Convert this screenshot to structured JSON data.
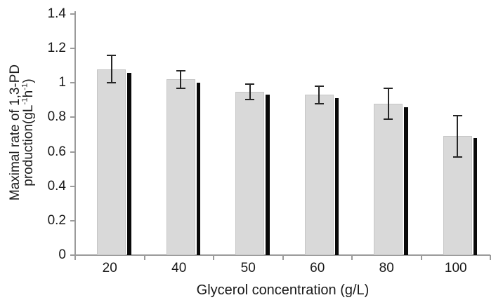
{
  "chart_data": {
    "type": "bar",
    "title": "",
    "xlabel": "Glycerol concentration (g/L)",
    "ylabel_line1": "Maximal rate of 1,3-PD",
    "ylabel_line2_parts": [
      {
        "t": "production(gL"
      },
      {
        "t": "-1",
        "sup": true
      },
      {
        "t": "h"
      },
      {
        "t": "-1",
        "sup": true
      },
      {
        "t": ")"
      }
    ],
    "categories": [
      "20",
      "40",
      "50",
      "60",
      "80",
      "100"
    ],
    "series": [
      {
        "name": "main gray bars",
        "color": "#d9d9d9",
        "border_color": "#c6c6c6",
        "values": [
          1.08,
          1.02,
          0.95,
          0.93,
          0.88,
          0.69
        ],
        "errors": [
          0.08,
          0.05,
          0.045,
          0.05,
          0.09,
          0.12
        ]
      },
      {
        "name": "thin black bars",
        "color": "#0a0a0a",
        "values": [
          1.06,
          1.0,
          0.93,
          0.91,
          0.86,
          0.68
        ]
      }
    ],
    "yticks": [
      "0",
      "0.2",
      "0.4",
      "0.6",
      "0.8",
      "1",
      "1.2",
      "1.4"
    ],
    "ylim": [
      0,
      1.4
    ],
    "grid": false,
    "legend": false,
    "axis_color": "#9b9b9b",
    "error_bar_color": "#262626",
    "background": "#ffffff"
  }
}
